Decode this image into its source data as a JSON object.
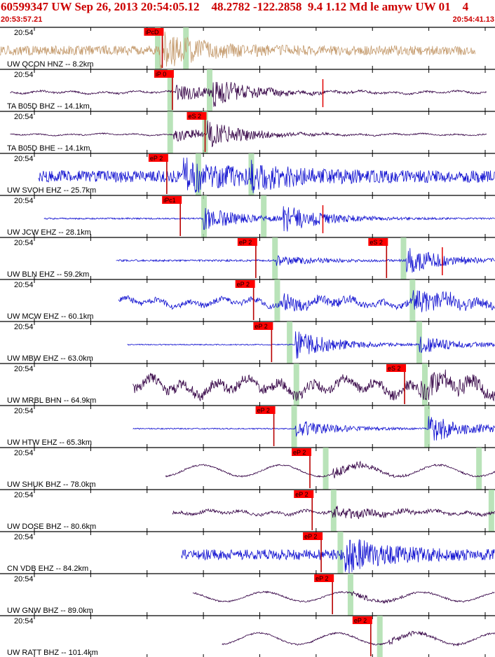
{
  "header": {
    "title": "60599347 UW Sep 26, 2013 20:54:05.12    48.2782 -122.2858  9.4 1.12 Md le amyw UW 01    4",
    "start_time": "20:53:57.21",
    "end_time": "20:54:41.13"
  },
  "chart_data": {
    "type": "line",
    "title": "60599347 UW Sep 26, 2013 20:54:05.12    48.2782 -122.2858  9.4 1.12 Md le amyw UW 01    4",
    "time_range_s": [
      0,
      43.92
    ],
    "minute_tick_label": "20:54",
    "tick_interval_s": 5,
    "traces": [
      {
        "label": "UW QCON HNZ -- 8.2km",
        "color": "#c49a6c",
        "start": 0.0,
        "end": 42.2,
        "amp": 0.25,
        "style": "hf",
        "seed": 1,
        "phases": [
          {
            "label": "iPcD",
            "t": 13.9,
            "h": true
          }
        ],
        "arrivals": [
          {
            "t": 14.2,
            "amp": 0.9
          }
        ],
        "marks": [
          14.0,
          16.5
        ]
      },
      {
        "label": "TA B05D BHZ -- 14.1km",
        "color": "#330044",
        "start": 0.9,
        "end": 43.2,
        "amp": 0.06,
        "style": "mixed",
        "seed": 2,
        "phases": [
          {
            "label": "iP 0",
            "t": 14.8
          }
        ],
        "arrivals": [
          {
            "t": 15.6,
            "amp": 0.55
          },
          {
            "t": 18.8,
            "amp": 0.75
          }
        ],
        "marks": [
          15.1,
          18.6
        ],
        "ticks": [
          27.9
        ]
      },
      {
        "label": "TA B05D BHE -- 14.1km",
        "color": "#330044",
        "start": 0.9,
        "end": 43.2,
        "amp": 0.04,
        "style": "mixed",
        "seed": 3,
        "phases": [
          {
            "label": "eS 2",
            "t": 17.7
          }
        ],
        "arrivals": [
          {
            "t": 15.4,
            "amp": 0.4
          },
          {
            "t": 18.4,
            "amp": 0.7
          }
        ],
        "marks": [
          15.1,
          18.2
        ]
      },
      {
        "label": "UW SVOH EHZ -- 25.7km",
        "color": "#1010d0",
        "start": 3.4,
        "end": 45.7,
        "amp": 0.32,
        "style": "hf",
        "seed": 4,
        "phases": [
          {
            "label": "eP 2",
            "t": 14.3
          }
        ],
        "arrivals": [
          {
            "t": 16.2,
            "amp": 0.85
          },
          {
            "t": 22.3,
            "amp": 0.5
          }
        ],
        "marks": [
          17.6,
          22.3
        ],
        "ticks": [
          47.8
        ]
      },
      {
        "label": "UW JCW EHZ -- 28.1km",
        "color": "#1010d0",
        "start": 3.9,
        "end": 46.2,
        "amp": 0.04,
        "style": "hf",
        "seed": 5,
        "phases": [
          {
            "label": "iPc1",
            "t": 15.5
          }
        ],
        "arrivals": [
          {
            "t": 18.0,
            "amp": 0.6
          },
          {
            "t": 25.1,
            "amp": 0.7
          }
        ],
        "marks": [
          18.1,
          23.4
        ],
        "ticks": [
          27.9
        ]
      },
      {
        "label": "UW BLN EHZ -- 59.2km",
        "color": "#1010d0",
        "start": 10.3,
        "end": 52.7,
        "amp": 0.05,
        "style": "hf",
        "seed": 6,
        "phases": [
          {
            "label": "eP 2",
            "t": 22.2
          },
          {
            "label": "eS 2",
            "t": 33.8
          }
        ],
        "arrivals": [
          {
            "t": 24.5,
            "amp": 0.25
          },
          {
            "t": 36.0,
            "amp": 0.7
          }
        ],
        "marks": [
          24.4,
          35.8
        ],
        "ticks": [
          38.5
        ]
      },
      {
        "label": "UW MCW EHZ -- 60.1km",
        "color": "#1010d0",
        "start": 10.5,
        "end": 52.9,
        "amp": 0.18,
        "style": "mixed",
        "seed": 7,
        "phases": [
          {
            "label": "eP 2",
            "t": 22.0
          }
        ],
        "arrivals": [
          {
            "t": 25.0,
            "amp": 0.45
          },
          {
            "t": 36.6,
            "amp": 0.75
          }
        ],
        "marks": [
          24.6,
          36.6
        ]
      },
      {
        "label": "UW MBW EHZ -- 63.0km",
        "color": "#1010d0",
        "start": 11.3,
        "end": 53.6,
        "amp": 0.03,
        "style": "hf",
        "seed": 8,
        "phases": [
          {
            "label": "eP 2",
            "t": 23.6
          }
        ],
        "arrivals": [
          {
            "t": 26.2,
            "amp": 0.75
          },
          {
            "t": 37.2,
            "amp": 0.45
          }
        ],
        "marks": [
          25.7,
          37.2
        ]
      },
      {
        "label": "UW MRBL BHN -- 64.9km",
        "color": "#330044",
        "start": 11.8,
        "end": 54.0,
        "amp": 0.35,
        "style": "mixed",
        "seed": 9,
        "phases": [
          {
            "label": "eS 2",
            "t": 35.4
          }
        ],
        "arrivals": [
          {
            "t": 37.3,
            "amp": 0.6
          }
        ],
        "marks": [
          26.3,
          37.7
        ]
      },
      {
        "label": "UW HTW EHZ -- 65.3km",
        "color": "#1010d0",
        "start": 11.8,
        "end": 54.0,
        "amp": 0.03,
        "style": "hf",
        "seed": 10,
        "phases": [
          {
            "label": "eP 2",
            "t": 23.8
          }
        ],
        "arrivals": [
          {
            "t": 26.2,
            "amp": 0.5
          },
          {
            "t": 38.0,
            "amp": 0.75
          }
        ],
        "marks": [
          26.1,
          37.9
        ]
      },
      {
        "label": "UW SHUK BHZ -- 78.0km",
        "color": "#330044",
        "start": 14.7,
        "end": 57.0,
        "amp": 0.12,
        "style": "lp",
        "seed": 11,
        "phases": [
          {
            "label": "eP 2",
            "t": 27.0
          }
        ],
        "arrivals": [
          {
            "t": 29.5,
            "amp": 0.5
          }
        ],
        "marks": [
          28.9,
          42.5
        ]
      },
      {
        "label": "UW DOSE BHZ -- 80.6km",
        "color": "#330044",
        "start": 15.3,
        "end": 57.4,
        "amp": 0.1,
        "style": "mixed",
        "seed": 12,
        "phases": [
          {
            "label": "eP 2",
            "t": 27.2
          }
        ],
        "arrivals": [
          {
            "t": 29.5,
            "amp": 0.4
          },
          {
            "t": 44.0,
            "amp": 0.8
          }
        ],
        "marks": [
          29.6,
          43.6
        ]
      },
      {
        "label": "CN VDB EHZ -- 84.2km",
        "color": "#1010d0",
        "start": 16.1,
        "end": 58.3,
        "amp": 0.28,
        "style": "hf",
        "seed": 13,
        "phases": [
          {
            "label": "eP 2",
            "t": 28.0
          }
        ],
        "arrivals": [
          {
            "t": 30.6,
            "amp": 0.8
          }
        ],
        "marks": [
          30.2,
          45.0
        ]
      },
      {
        "label": "UW GNW BHZ -- 89.0km",
        "color": "#330044",
        "start": 17.1,
        "end": 59.3,
        "amp": 0.1,
        "style": "lp",
        "seed": 14,
        "phases": [
          {
            "label": "eP 2",
            "t": 29.0
          }
        ],
        "arrivals": [
          {
            "t": 31.2,
            "amp": 0.3
          }
        ],
        "marks": [
          31.1,
          46.6
        ]
      },
      {
        "label": "UW RATT BHZ -- 101.4km",
        "color": "#330044",
        "start": 19.7,
        "end": 61.9,
        "amp": 0.12,
        "style": "lp",
        "seed": 15,
        "phases": [
          {
            "label": "eP 2",
            "t": 32.4
          }
        ],
        "arrivals": [
          {
            "t": 34.5,
            "amp": 0.3
          }
        ],
        "marks": [
          33.7,
          51.6
        ]
      }
    ]
  }
}
